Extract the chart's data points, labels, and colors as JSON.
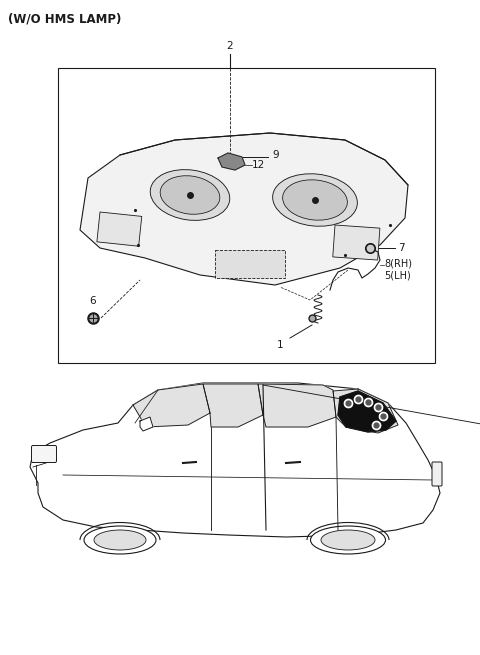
{
  "title": "(W/O HMS LAMP)",
  "bg_color": "#ffffff",
  "line_color": "#1a1a1a",
  "label_fontsize": 7.5,
  "title_fontsize": 8.5
}
